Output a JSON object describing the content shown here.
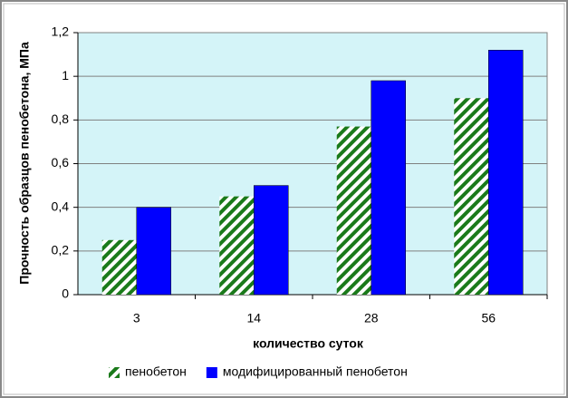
{
  "chart_data": {
    "type": "bar",
    "categories": [
      "3",
      "14",
      "28",
      "56"
    ],
    "series": [
      {
        "name": "пенобетон",
        "color": "#1a7a1a",
        "pattern": "hatch",
        "values": [
          0.25,
          0.45,
          0.77,
          0.9
        ]
      },
      {
        "name": "модифицированный пенобетон",
        "color": "#0000ff",
        "values": [
          0.4,
          0.5,
          0.98,
          1.12
        ]
      }
    ],
    "x_label": "количество суток",
    "y_label": "Прочность образцов пенобетона, МПа",
    "ylim": [
      0,
      1.2
    ],
    "yticks": [
      0,
      {
        "value": 0.2,
        "label": "0,2"
      },
      {
        "value": 0.4,
        "label": "0,4"
      },
      {
        "value": 0.6,
        "label": "0,6"
      },
      {
        "value": 0.8,
        "label": "0,8"
      },
      1,
      {
        "value": 1.2,
        "label": "1,2"
      }
    ],
    "grid": true,
    "legend": "bottom",
    "plot_background": "#d4f4f8"
  }
}
